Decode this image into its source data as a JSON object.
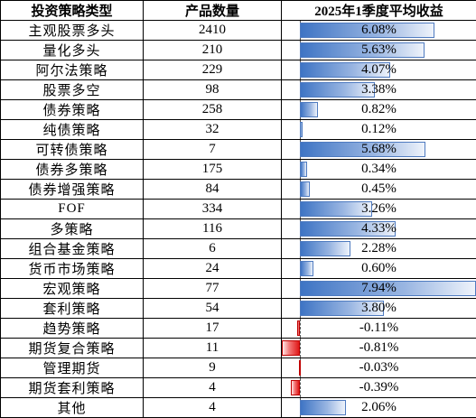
{
  "table": {
    "headers": [
      "投资策略类型",
      "产品数量",
      "2025年1季度平均收益"
    ],
    "rows": [
      {
        "strategy": "主观股票多头",
        "count": "2410",
        "return_label": "6.08%",
        "return": 6.08
      },
      {
        "strategy": "量化多头",
        "count": "210",
        "return_label": "5.63%",
        "return": 5.63
      },
      {
        "strategy": "阿尔法策略",
        "count": "229",
        "return_label": "4.07%",
        "return": 4.07
      },
      {
        "strategy": "股票多空",
        "count": "98",
        "return_label": "3.38%",
        "return": 3.38
      },
      {
        "strategy": "债券策略",
        "count": "258",
        "return_label": "0.82%",
        "return": 0.82
      },
      {
        "strategy": "纯债策略",
        "count": "32",
        "return_label": "0.12%",
        "return": 0.12
      },
      {
        "strategy": "可转债策略",
        "count": "7",
        "return_label": "5.68%",
        "return": 5.68
      },
      {
        "strategy": "债券多策略",
        "count": "175",
        "return_label": "0.34%",
        "return": 0.34
      },
      {
        "strategy": "债券增强策略",
        "count": "84",
        "return_label": "0.45%",
        "return": 0.45
      },
      {
        "strategy": "FOF",
        "count": "334",
        "return_label": "3.26%",
        "return": 3.26
      },
      {
        "strategy": "多策略",
        "count": "116",
        "return_label": "4.33%",
        "return": 4.33
      },
      {
        "strategy": "组合基金策略",
        "count": "6",
        "return_label": "2.28%",
        "return": 2.28
      },
      {
        "strategy": "货币市场策略",
        "count": "24",
        "return_label": "0.60%",
        "return": 0.6
      },
      {
        "strategy": "宏观策略",
        "count": "77",
        "return_label": "7.94%",
        "return": 7.94
      },
      {
        "strategy": "套利策略",
        "count": "54",
        "return_label": "3.80%",
        "return": 3.8
      },
      {
        "strategy": "趋势策略",
        "count": "17",
        "return_label": "-0.11%",
        "return": -0.11
      },
      {
        "strategy": "期货复合策略",
        "count": "11",
        "return_label": "-0.81%",
        "return": -0.81
      },
      {
        "strategy": "管理期货",
        "count": "9",
        "return_label": "-0.03%",
        "return": -0.03
      },
      {
        "strategy": "期货套利策略",
        "count": "4",
        "return_label": "-0.39%",
        "return": -0.39
      },
      {
        "strategy": "其他",
        "count": "4",
        "return_label": "2.06%",
        "return": 2.06
      }
    ]
  },
  "chart_data": {
    "type": "table",
    "columns": [
      "投资策略类型",
      "产品数量",
      "2025年1季度平均收益"
    ],
    "categories": [
      "主观股票多头",
      "量化多头",
      "阿尔法策略",
      "股票多空",
      "债券策略",
      "纯债策略",
      "可转债策略",
      "债券多策略",
      "债券增强策略",
      "FOF",
      "多策略",
      "组合基金策略",
      "货币市场策略",
      "宏观策略",
      "套利策略",
      "趋势策略",
      "期货复合策略",
      "管理期货",
      "期货套利策略",
      "其他"
    ],
    "series": [
      {
        "name": "产品数量",
        "values": [
          2410,
          210,
          229,
          98,
          258,
          32,
          7,
          175,
          84,
          334,
          116,
          6,
          24,
          77,
          54,
          17,
          11,
          9,
          4,
          4
        ]
      },
      {
        "name": "2025年1季度平均收益",
        "values": [
          6.08,
          5.63,
          4.07,
          3.38,
          0.82,
          0.12,
          5.68,
          0.34,
          0.45,
          3.26,
          4.33,
          2.28,
          0.6,
          7.94,
          3.8,
          -0.11,
          -0.81,
          -0.03,
          -0.39,
          2.06
        ]
      }
    ],
    "data_bar_range": [
      -0.81,
      7.94
    ],
    "colors": {
      "positive": "#3e74c4",
      "negative": "#e01818"
    }
  }
}
